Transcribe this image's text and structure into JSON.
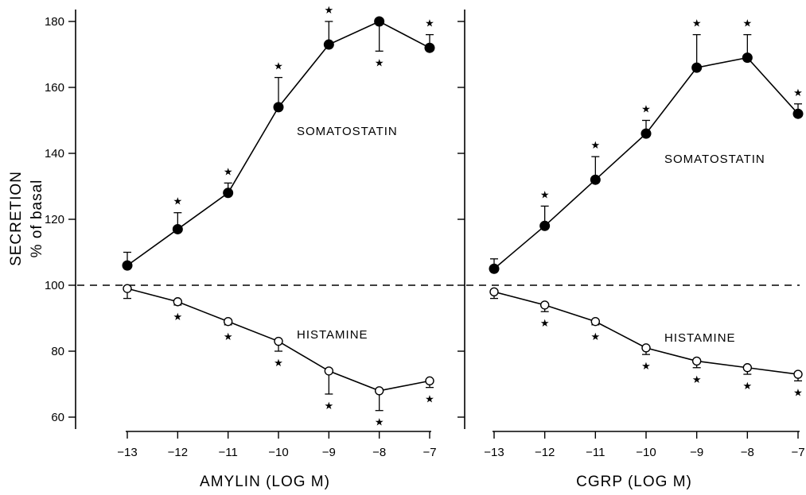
{
  "figure": {
    "y_title": "SECRETION",
    "y_subtitle": "% of basal"
  },
  "colors": {
    "filled_marker": "#000000",
    "open_marker": "#ffffff",
    "line": "#000000"
  },
  "chart_data": [
    {
      "type": "line",
      "xlabel": "AMYLIN (LOG M)",
      "ylabel": "SECRETION % of basal",
      "x": [
        -13,
        -12,
        -11,
        -10,
        -9,
        -8,
        -7
      ],
      "xlim": [
        -13,
        -7
      ],
      "ylim": [
        60,
        180
      ],
      "y_ticks": [
        60,
        80,
        100,
        120,
        140,
        160,
        180
      ],
      "x_ticks": [
        -13,
        -12,
        -11,
        -10,
        -9,
        -8,
        -7
      ],
      "reference_line": 100,
      "series": [
        {
          "name": "SOMATOSTATIN",
          "marker": "filled-circle",
          "values": [
            106,
            117,
            128,
            154,
            173,
            180,
            172
          ],
          "error_up": [
            4,
            5,
            3,
            9,
            7,
            0,
            4
          ],
          "error_down": [
            0,
            0,
            0,
            0,
            0,
            9,
            0
          ],
          "significant": [
            false,
            true,
            true,
            true,
            true,
            true,
            true
          ]
        },
        {
          "name": "HISTAMINE",
          "marker": "open-circle",
          "values": [
            99,
            95,
            89,
            83,
            74,
            68,
            71
          ],
          "error_up": [
            0,
            0,
            0,
            0,
            0,
            0,
            0
          ],
          "error_down": [
            3,
            1,
            1,
            3,
            7,
            6,
            2
          ],
          "significant": [
            false,
            true,
            true,
            true,
            true,
            true,
            true
          ]
        }
      ]
    },
    {
      "type": "line",
      "xlabel": "CGRP (LOG M)",
      "ylabel": "SECRETION % of basal",
      "x": [
        -13,
        -12,
        -11,
        -10,
        -9,
        -8,
        -7
      ],
      "xlim": [
        -13,
        -7
      ],
      "ylim": [
        60,
        180
      ],
      "x_ticks": [
        -13,
        -12,
        -11,
        -10,
        -9,
        -8,
        -7
      ],
      "reference_line": 100,
      "series": [
        {
          "name": "SOMATOSTATIN",
          "marker": "filled-circle",
          "values": [
            105,
            118,
            132,
            146,
            166,
            169,
            152
          ],
          "error_up": [
            3,
            6,
            7,
            4,
            10,
            7,
            3
          ],
          "error_down": [
            0,
            0,
            0,
            0,
            0,
            0,
            0
          ],
          "significant": [
            false,
            true,
            true,
            true,
            true,
            true,
            true
          ]
        },
        {
          "name": "HISTAMINE",
          "marker": "open-circle",
          "values": [
            98,
            94,
            89,
            81,
            77,
            75,
            73
          ],
          "error_up": [
            0,
            0,
            0,
            0,
            0,
            0,
            0
          ],
          "error_down": [
            2,
            2,
            1,
            2,
            2,
            2,
            2
          ],
          "significant": [
            false,
            true,
            true,
            true,
            true,
            true,
            true
          ]
        }
      ]
    }
  ]
}
